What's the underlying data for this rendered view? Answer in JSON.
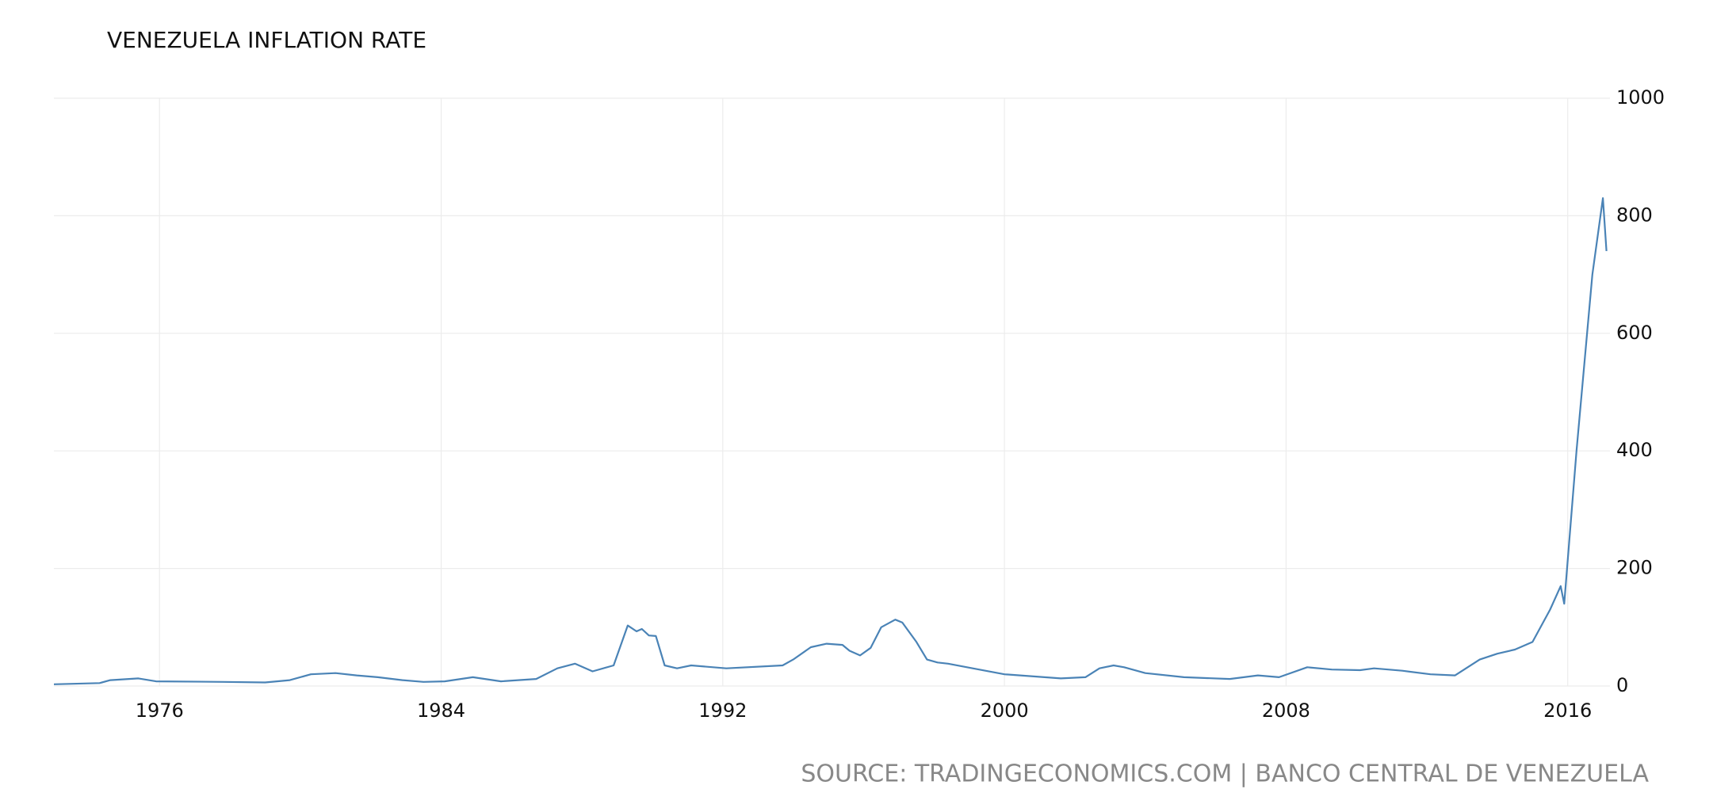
{
  "chart_data": {
    "type": "line",
    "title": "VENEZUELA INFLATION RATE",
    "source": "SOURCE: TRADINGECONOMICS.COM | BANCO CENTRAL DE VENEZUELA",
    "x": [
      1973.0,
      1974.3,
      1974.6,
      1975.4,
      1975.9,
      1977.8,
      1979.0,
      1979.7,
      1980.3,
      1981.0,
      1981.6,
      1982.2,
      1982.9,
      1983.5,
      1984.1,
      1984.9,
      1985.7,
      1986.7,
      1987.3,
      1987.8,
      1988.3,
      1988.9,
      1989.3,
      1989.55,
      1989.7,
      1989.9,
      1990.1,
      1990.35,
      1990.7,
      1991.1,
      1992.1,
      1993.7,
      1994.0,
      1994.5,
      1994.95,
      1995.4,
      1995.6,
      1995.9,
      1996.2,
      1996.5,
      1996.9,
      1997.1,
      1997.5,
      1997.8,
      1998.1,
      1998.4,
      1999.1,
      2000.0,
      2001.6,
      2002.3,
      2002.7,
      2003.1,
      2003.4,
      2004.0,
      2005.1,
      2006.4,
      2007.2,
      2007.8,
      2008.6,
      2009.3,
      2010.1,
      2010.5,
      2011.3,
      2012.1,
      2012.8,
      2013.5,
      2014.0,
      2014.5,
      2015.0,
      2015.5,
      2015.8,
      2015.9,
      2016.25,
      2016.7,
      2017.0,
      2017.1
    ],
    "series": [
      {
        "name": "Inflation rate",
        "color": "#4a83b6",
        "values": [
          3,
          5,
          10,
          13,
          8,
          7,
          6,
          10,
          20,
          22,
          18,
          15,
          10,
          7,
          8,
          15,
          8,
          12,
          30,
          38,
          25,
          35,
          103,
          93,
          97,
          86,
          85,
          35,
          30,
          35,
          30,
          35,
          45,
          66,
          72,
          70,
          60,
          52,
          65,
          100,
          113,
          108,
          75,
          45,
          40,
          38,
          30,
          20,
          13,
          15,
          30,
          35,
          32,
          22,
          15,
          12,
          18,
          15,
          32,
          28,
          27,
          30,
          26,
          20,
          18,
          45,
          55,
          62,
          75,
          130,
          170,
          140,
          400,
          700,
          830,
          740
        ]
      }
    ],
    "xlim": [
      1973.0,
      2017.2
    ],
    "xticks": [
      1976,
      1984,
      1992,
      2000,
      2008,
      2016
    ],
    "ylim": [
      0,
      1000
    ],
    "yticks": [
      0,
      200,
      400,
      600,
      800,
      1000
    ],
    "grid": true
  }
}
